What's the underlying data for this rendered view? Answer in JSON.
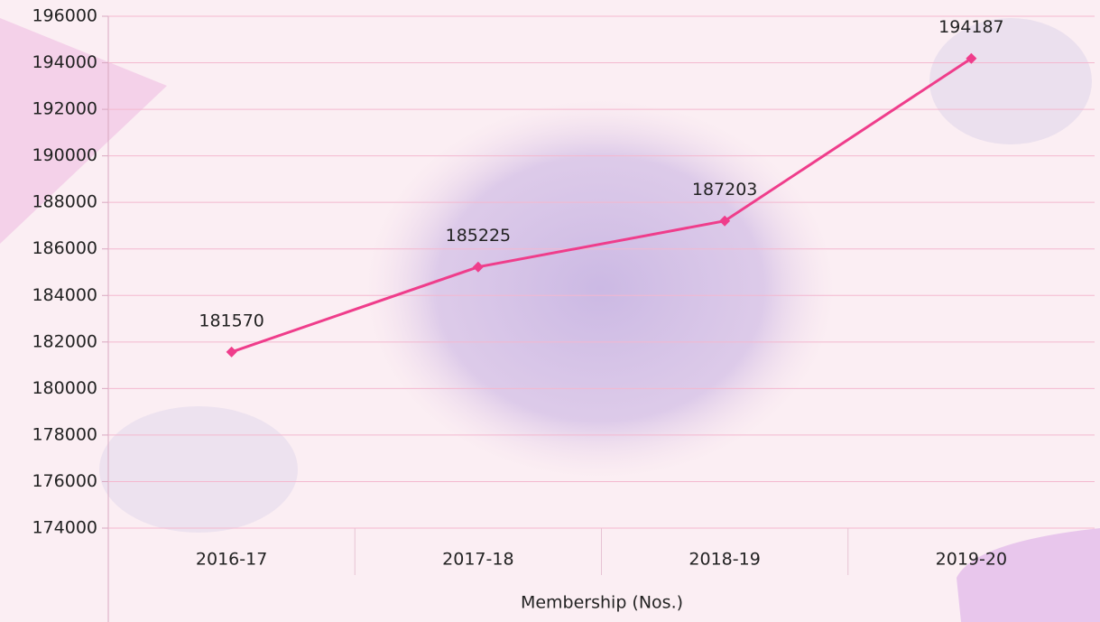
{
  "chart_data": {
    "type": "line",
    "x_label": "Membership (Nos.)",
    "categories": [
      "2016-17",
      "2017-18",
      "2018-19",
      "2019-20"
    ],
    "series": [
      {
        "name": "Membership (Nos.)",
        "color": "#ef3d8b",
        "values": [
          181570,
          185225,
          187203,
          194187
        ]
      }
    ],
    "ylim": [
      174000,
      196000
    ],
    "yticks": [
      174000,
      176000,
      178000,
      180000,
      182000,
      184000,
      186000,
      188000,
      190000,
      192000,
      194000,
      196000
    ],
    "grid": true
  }
}
